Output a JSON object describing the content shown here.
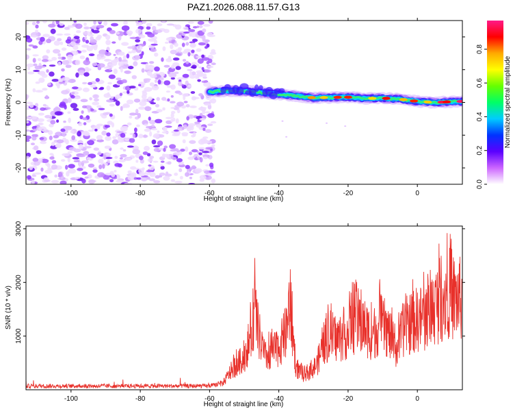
{
  "title": "PAZ1.2026.088.11.57.G13",
  "chart_data": [
    {
      "type": "heatmap",
      "title": "PAZ1.2026.088.11.57.G13",
      "xlabel": "Height of straight line (km)",
      "ylabel": "Frequency (Hz)",
      "xlim": [
        -113,
        13
      ],
      "ylim": [
        -25,
        25
      ],
      "xticks": [
        -100,
        -80,
        -60,
        -40,
        -20,
        0
      ],
      "yticks": [
        -20,
        -10,
        0,
        10,
        20
      ],
      "noise_region_x": [
        -113,
        -60
      ],
      "signal_start_x": -60,
      "signal_track": [
        {
          "x": -60,
          "f": 3.2
        },
        {
          "x": -55,
          "f": 3.6
        },
        {
          "x": -50,
          "f": 3.5
        },
        {
          "x": -45,
          "f": 3.0
        },
        {
          "x": -40,
          "f": 2.5
        },
        {
          "x": -35,
          "f": 2.0
        },
        {
          "x": -30,
          "f": 1.4
        },
        {
          "x": -25,
          "f": 1.5
        },
        {
          "x": -20,
          "f": 1.6
        },
        {
          "x": -15,
          "f": 1.2
        },
        {
          "x": -10,
          "f": 1.3
        },
        {
          "x": -5,
          "f": 1.0
        },
        {
          "x": 0,
          "f": 0.3
        },
        {
          "x": 5,
          "f": 0.0
        },
        {
          "x": 10,
          "f": 0.2
        },
        {
          "x": 13,
          "f": 0.3
        }
      ],
      "colorbar": {
        "label": "Normalized spectral amplitude",
        "range": [
          0,
          0.97
        ],
        "ticks": [
          0.0,
          0.2,
          0.4,
          0.6,
          0.8
        ],
        "colors": [
          "#ffffff",
          "#cc66ff",
          "#5a00ff",
          "#0033ff",
          "#00ccff",
          "#00ff66",
          "#66ff00",
          "#ffff00",
          "#ffaa00",
          "#ff0000",
          "#ff1a88"
        ]
      }
    },
    {
      "type": "line",
      "xlabel": "Height of straight line (km)",
      "ylabel": "SNR (10 * v/v)",
      "xlim": [
        -113,
        13
      ],
      "ylim": [
        0,
        3050
      ],
      "xticks": [
        -100,
        -80,
        -60,
        -40,
        -20,
        0
      ],
      "yticks": [
        1000,
        2000,
        3000
      ],
      "color": "#e8302a",
      "baseline": {
        "x_range": [
          -113,
          -60
        ],
        "level": 70,
        "noise_amplitude": 80
      },
      "envelope": [
        {
          "x": -60,
          "v": 100
        },
        {
          "x": -56,
          "v": 180
        },
        {
          "x": -54,
          "v": 500
        },
        {
          "x": -52,
          "v": 700
        },
        {
          "x": -50,
          "v": 900
        },
        {
          "x": -48,
          "v": 1500
        },
        {
          "x": -47,
          "v": 2300
        },
        {
          "x": -46,
          "v": 1600
        },
        {
          "x": -44,
          "v": 900
        },
        {
          "x": -42,
          "v": 1000
        },
        {
          "x": -40,
          "v": 1200
        },
        {
          "x": -38,
          "v": 1500
        },
        {
          "x": -37,
          "v": 2300
        },
        {
          "x": -36,
          "v": 1600
        },
        {
          "x": -35,
          "v": 600
        },
        {
          "x": -33,
          "v": 400
        },
        {
          "x": -31,
          "v": 500
        },
        {
          "x": -29,
          "v": 700
        },
        {
          "x": -27,
          "v": 1300
        },
        {
          "x": -25,
          "v": 1500
        },
        {
          "x": -23,
          "v": 1400
        },
        {
          "x": -20,
          "v": 1600
        },
        {
          "x": -18,
          "v": 1900
        },
        {
          "x": -15,
          "v": 1700
        },
        {
          "x": -13,
          "v": 1500
        },
        {
          "x": -11,
          "v": 1800
        },
        {
          "x": -9,
          "v": 1700
        },
        {
          "x": -7,
          "v": 1300
        },
        {
          "x": -6,
          "v": 1100
        },
        {
          "x": -4,
          "v": 1700
        },
        {
          "x": -1,
          "v": 1900
        },
        {
          "x": 2,
          "v": 2000
        },
        {
          "x": 4,
          "v": 2200
        },
        {
          "x": 7,
          "v": 2500
        },
        {
          "x": 9,
          "v": 2700
        },
        {
          "x": 11,
          "v": 2500
        },
        {
          "x": 13,
          "v": 2500
        }
      ]
    }
  ]
}
